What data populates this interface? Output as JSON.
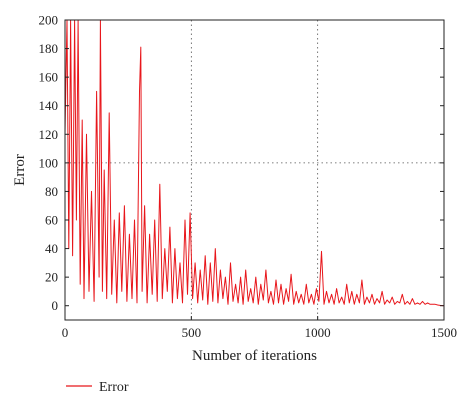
{
  "chart_data": {
    "type": "line",
    "xlabel": "Number of iterations",
    "ylabel": "Error",
    "xlim": [
      0,
      1500
    ],
    "ylim": [
      -10,
      200
    ],
    "xticks": [
      0,
      500,
      1000,
      1500
    ],
    "yticks": [
      0,
      20,
      40,
      60,
      80,
      100,
      120,
      140,
      160,
      180,
      200
    ],
    "grid": true,
    "grid_style": "dotted",
    "legend_position": "bottom-left",
    "series": [
      {
        "name": "Error",
        "color": "#e8161b",
        "x": [
          0,
          8,
          15,
          22,
          30,
          38,
          45,
          52,
          60,
          68,
          75,
          85,
          95,
          105,
          115,
          125,
          135,
          140,
          148,
          155,
          165,
          175,
          185,
          195,
          205,
          215,
          225,
          235,
          245,
          255,
          265,
          275,
          285,
          295,
          300,
          305,
          315,
          325,
          335,
          345,
          355,
          365,
          375,
          385,
          395,
          405,
          415,
          425,
          435,
          445,
          455,
          465,
          475,
          485,
          495,
          505,
          515,
          525,
          535,
          545,
          555,
          565,
          575,
          585,
          595,
          605,
          615,
          625,
          635,
          645,
          655,
          665,
          675,
          685,
          695,
          705,
          715,
          725,
          735,
          745,
          755,
          765,
          775,
          785,
          795,
          805,
          815,
          825,
          835,
          845,
          855,
          865,
          875,
          885,
          895,
          905,
          915,
          925,
          935,
          945,
          955,
          965,
          975,
          985,
          995,
          1005,
          1015,
          1025,
          1035,
          1045,
          1055,
          1065,
          1075,
          1085,
          1095,
          1105,
          1115,
          1125,
          1135,
          1145,
          1155,
          1165,
          1175,
          1185,
          1195,
          1205,
          1215,
          1225,
          1235,
          1245,
          1255,
          1265,
          1275,
          1285,
          1295,
          1305,
          1315,
          1325,
          1335,
          1345,
          1355,
          1365,
          1375,
          1385,
          1395,
          1405,
          1415,
          1425,
          1435,
          1445,
          1455,
          1465,
          1475,
          1485,
          1500
        ],
        "y": [
          120,
          200,
          40,
          200,
          35,
          200,
          60,
          200,
          15,
          130,
          5,
          120,
          10,
          80,
          3,
          150,
          20,
          200,
          10,
          95,
          5,
          135,
          8,
          60,
          2,
          65,
          10,
          70,
          3,
          50,
          5,
          60,
          2,
          150,
          181,
          10,
          70,
          2,
          50,
          8,
          60,
          3,
          85,
          5,
          40,
          10,
          55,
          2,
          40,
          5,
          30,
          2,
          60,
          8,
          65,
          5,
          30,
          2,
          25,
          4,
          35,
          1,
          30,
          3,
          40,
          2,
          25,
          5,
          20,
          1,
          30,
          3,
          15,
          2,
          20,
          1,
          25,
          3,
          12,
          2,
          20,
          1,
          15,
          4,
          25,
          2,
          10,
          1,
          18,
          2,
          15,
          1,
          12,
          3,
          22,
          1,
          10,
          2,
          8,
          1,
          15,
          2,
          8,
          1,
          12,
          3,
          38,
          1,
          10,
          2,
          8,
          1,
          12,
          2,
          6,
          1,
          15,
          2,
          10,
          1,
          8,
          2,
          18,
          1,
          6,
          2,
          8,
          1,
          5,
          2,
          10,
          1,
          4,
          2,
          6,
          1,
          3,
          2,
          8,
          1,
          3,
          1,
          5,
          1,
          2,
          1,
          3,
          1,
          2,
          1,
          1,
          1,
          0.5,
          0.2,
          0
        ]
      }
    ]
  }
}
